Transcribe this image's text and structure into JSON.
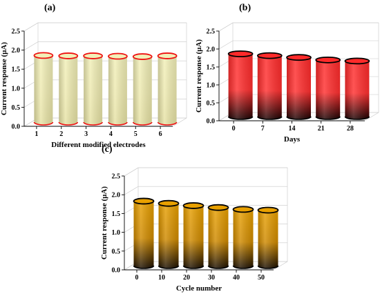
{
  "chart_data": [
    {
      "panel_label": "(a)",
      "type": "bar",
      "style": "3d-cylinder",
      "categories": [
        "1",
        "2",
        "3",
        "4",
        "5",
        "6"
      ],
      "values": [
        1.75,
        1.74,
        1.74,
        1.73,
        1.72,
        1.74
      ],
      "xlabel": "Different modified electrodes",
      "ylabel": "Current response (µA)",
      "ylim": [
        0,
        2.5
      ],
      "yticks": [
        "0.0",
        "0.5",
        "1.0",
        "1.5",
        "2.0",
        "2.5"
      ],
      "grid": true,
      "colors": {
        "top": "#f2f0b8",
        "mid": "#eeeab0",
        "bottom": "#e6e2a4",
        "edge": "#ee1111"
      }
    },
    {
      "panel_label": "(b)",
      "type": "bar",
      "style": "3d-cylinder",
      "categories": [
        "0",
        "7",
        "14",
        "21",
        "28"
      ],
      "values": [
        1.75,
        1.7,
        1.65,
        1.58,
        1.55
      ],
      "xlabel": "Days",
      "ylabel": "Current response (µA)",
      "ylim": [
        0,
        2.5
      ],
      "yticks": [
        "0.0",
        "0.5",
        "1.0",
        "1.5",
        "2.0",
        "2.5"
      ],
      "grid": true,
      "colors": {
        "top": "#ff2a2a",
        "mid": "#ff3030",
        "bottom": "#1a0000",
        "edge": "#000000"
      }
    },
    {
      "panel_label": "(c)",
      "type": "bar",
      "style": "3d-cylinder",
      "categories": [
        "0",
        "10",
        "20",
        "30",
        "40",
        "50"
      ],
      "values": [
        1.72,
        1.66,
        1.6,
        1.55,
        1.5,
        1.48
      ],
      "xlabel": "Cycle number",
      "ylabel": "Current response (µA)",
      "ylim": [
        0,
        2.5
      ],
      "yticks": [
        "0.0",
        "0.5",
        "1.0",
        "1.5",
        "2.0",
        "2.5"
      ],
      "grid": true,
      "colors": {
        "top": "#e8a000",
        "mid": "#cf8a00",
        "bottom": "#1a0e00",
        "edge": "#000000"
      }
    }
  ]
}
